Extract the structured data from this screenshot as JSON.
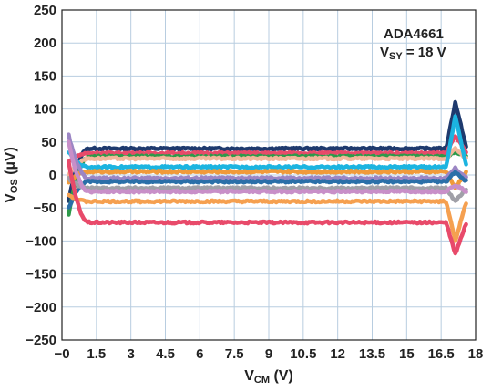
{
  "chart_data": {
    "type": "line",
    "xlabel": {
      "main": "V",
      "sub": "CM",
      "unit": " (V)"
    },
    "ylabel": {
      "main": "V",
      "sub": "OS",
      "unit": " (µV)"
    },
    "xlim": [
      -0.3,
      18
    ],
    "ylim": [
      -250,
      250
    ],
    "x_ticks": [
      "−0",
      "1.5",
      "3",
      "4.5",
      "6",
      "7.5",
      "9",
      "10.5",
      "12",
      "13.5",
      "15",
      "16.5",
      "18"
    ],
    "y_ticks": [
      "250",
      "200",
      "150",
      "100",
      "50",
      "0",
      "−50",
      "−100",
      "−150",
      "−200",
      "−250"
    ],
    "grid": true,
    "annotation": {
      "line1": "ADA4661",
      "line2_main": "V",
      "line2_sub": "SY",
      "line2_rest": " = 18 V"
    },
    "series": [
      {
        "color": "#1e3a6e",
        "start": -40,
        "level": 40,
        "end": 110
      },
      {
        "color": "#e84a6a",
        "start": 20,
        "level": 33,
        "end": 60
      },
      {
        "color": "#2d9a4a",
        "start": -60,
        "level": 28,
        "end": 35
      },
      {
        "color": "#f2b79a",
        "start": 0,
        "level": 25,
        "end": 40
      },
      {
        "color": "#1cb4e0",
        "start": 35,
        "level": 12,
        "end": 90
      },
      {
        "color": "#f09a3a",
        "start": -10,
        "level": 5,
        "end": -20
      },
      {
        "color": "#9c86c4",
        "start": 60,
        "level": -5,
        "end": 10
      },
      {
        "color": "#2a6fa8",
        "start": -50,
        "level": -10,
        "end": 5
      },
      {
        "color": "#a0a0a8",
        "start": -5,
        "level": -20,
        "end": -40
      },
      {
        "color": "#c88fc8",
        "start": 50,
        "level": -25,
        "end": -15
      },
      {
        "color": "#f5a050",
        "start": -30,
        "level": -40,
        "end": -100
      },
      {
        "color": "#e84a6a",
        "start": 20,
        "level": -72,
        "end": -120
      }
    ]
  }
}
